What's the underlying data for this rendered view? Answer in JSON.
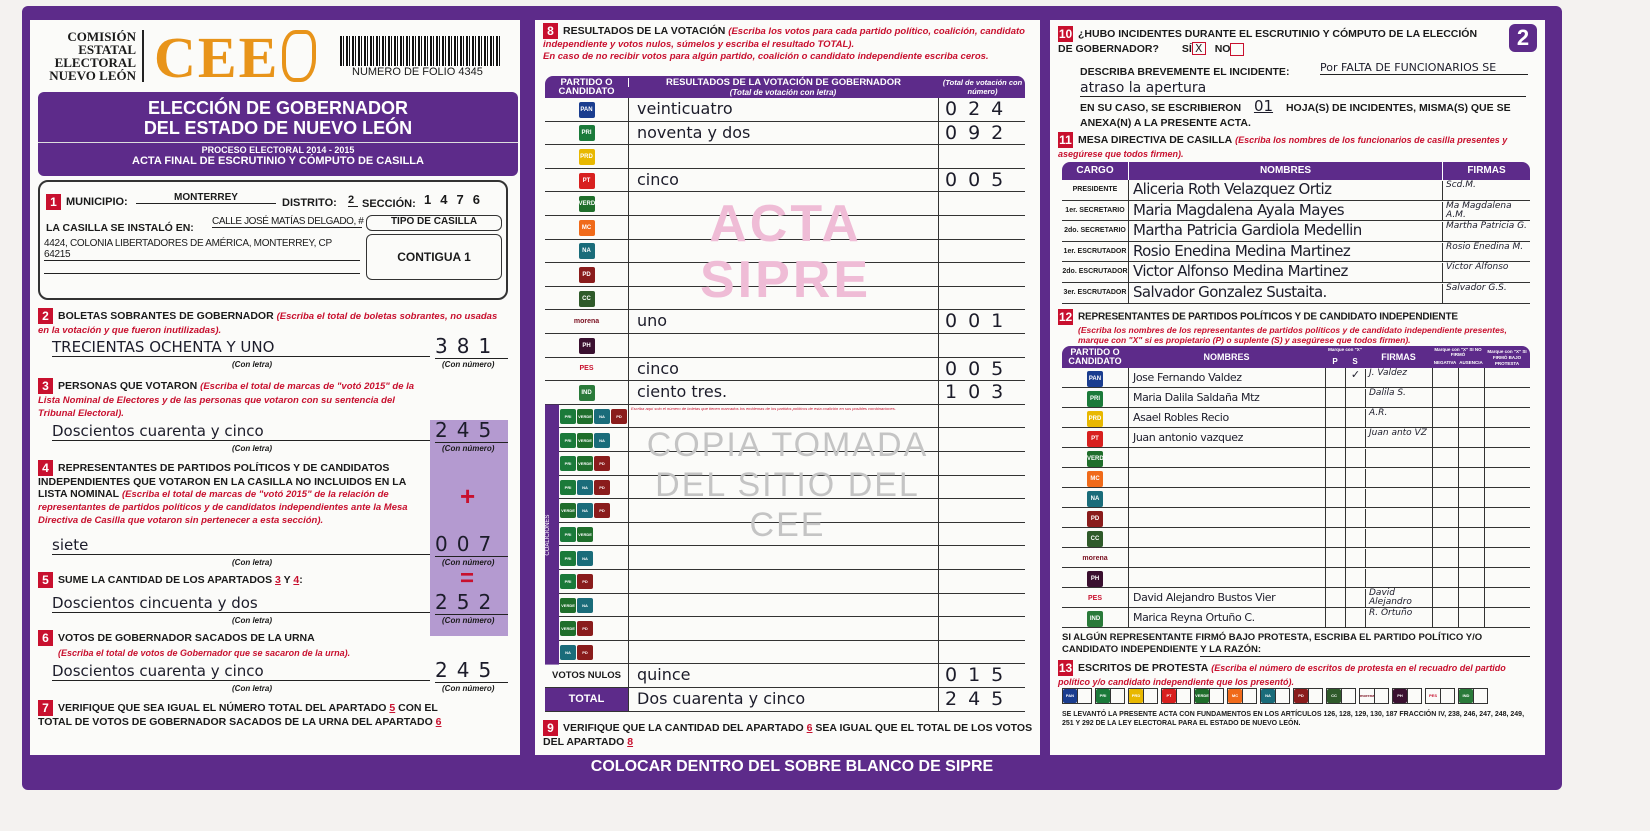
{
  "colors": {
    "frame": "#5d2b8a",
    "accent_red": "#c8102e",
    "logo_orange": "#e8941a",
    "watermark_pink": "#e9a8c8"
  },
  "header": {
    "org_lines": [
      "COMISIÓN",
      "ESTATAL",
      "ELECTORAL",
      "NUEVO LEÓN"
    ],
    "logo": "CEE",
    "folio": "NUMERO DE FOLIO 4345",
    "page_number": "2",
    "title1": "ELECCIÓN DE GOBERNADOR",
    "title2": "DEL ESTADO DE NUEVO LEÓN",
    "process": "PROCESO ELECTORAL 2014 - 2015",
    "act": "ACTA FINAL DE ESCRUTINIO Y CÓMPUTO DE CASILLA"
  },
  "s1": {
    "num": "1",
    "municipio_label": "MUNICIPIO:",
    "municipio": "MONTERREY",
    "distrito_label": "DISTRITO:",
    "distrito": "2",
    "seccion_label": "SECCIÓN:",
    "seccion": "1476",
    "instalo_label": "LA CASILLA SE INSTALÓ EN:",
    "direccion1": "CALLE JOSÉ MATÍAS DELGADO, #",
    "direccion2": "4424, COLONIA LIBERTADORES DE AMÉRICA, MONTERREY, CP 64215",
    "tipo_label": "TIPO DE CASILLA",
    "tipo": "CONTIGUA 1"
  },
  "labels": {
    "con_letra": "(Con letra)",
    "con_numero": "(Con número)",
    "plus": "+",
    "equals": "="
  },
  "s2": {
    "num": "2",
    "title": "BOLETAS SOBRANTES DE GOBERNADOR",
    "note": "(Escriba el total de boletas sobrantes, no usadas en la votación y que fueron inutilizadas).",
    "letra": "TRECIENTAS OCHENTA Y UNO",
    "numero": "381"
  },
  "s3": {
    "num": "3",
    "title": "PERSONAS QUE VOTARON",
    "note": "(Escriba el total de marcas de \"votó 2015\" de la Lista Nominal de Electores y de las personas que votaron con su sentencia del Tribunal Electoral).",
    "letra": "Doscientos cuarenta y cinco",
    "numero": "245"
  },
  "s4": {
    "num": "4",
    "title": "REPRESENTANTES DE PARTIDOS POLÍTICOS Y DE CANDIDATOS INDEPENDIENTES QUE VOTARON EN LA CASILLA NO INCLUIDOS EN LA LISTA NOMINAL",
    "note": "(Escriba el total de marcas de \"votó 2015\" de la relación de representantes de partidos políticos y de candidatos independientes ante la Mesa Directiva de Casilla que votaron sin pertenecer a esta sección).",
    "letra": "siete",
    "numero": "007"
  },
  "s5": {
    "num": "5",
    "title": "SUME LA CANTIDAD DE LOS APARTADOS",
    "a": "3",
    "y": "Y",
    "b": "4",
    "letra": "Doscientos cincuenta y dos",
    "numero": "252"
  },
  "s6": {
    "num": "6",
    "title": "VOTOS DE GOBERNADOR SACADOS DE LA URNA",
    "note": "(Escriba el total de votos de Gobernador que se sacaron de la urna).",
    "letra": "Doscientos cuarenta y cinco",
    "numero": "245"
  },
  "s7": {
    "num": "7",
    "t1": "VERIFIQUE QUE SEA IGUAL EL NÚMERO TOTAL DEL APARTADO",
    "a": "5",
    "t2": "CON EL TOTAL DE VOTOS DE GOBERNADOR SACADOS DE LA URNA DEL APARTADO",
    "b": "6"
  },
  "s8": {
    "num": "8",
    "title": "RESULTADOS DE LA VOTACIÓN",
    "note1": "(Escriba los votos para cada partido político, coalición, candidato independiente y votos nulos, súmelos y escriba el resultado TOTAL).",
    "note2": "En caso de no recibir votos para algún partido, coalición o candidato independiente escriba ceros.",
    "col_party": "PARTIDO O CANDIDATO",
    "col_letra": "RESULTADOS DE LA VOTACIÓN DE GOBERNADOR",
    "col_letra_sub": "(Total de votación con letra)",
    "col_num": "(Total de votación con número)",
    "rows": [
      {
        "party": "pan",
        "letra": "veinticuatro",
        "numero": "024"
      },
      {
        "party": "pri",
        "letra": "noventa y dos",
        "numero": "092"
      },
      {
        "party": "prd",
        "letra": "",
        "numero": ""
      },
      {
        "party": "pt",
        "letra": "cinco",
        "numero": "005"
      },
      {
        "party": "verde",
        "letra": "",
        "numero": ""
      },
      {
        "party": "movimiento-ciudadano",
        "letra": "",
        "numero": ""
      },
      {
        "party": "nueva-alianza",
        "letra": "",
        "numero": ""
      },
      {
        "party": "partido-democrata",
        "letra": "",
        "numero": ""
      },
      {
        "party": "cruzada-ciudadana",
        "letra": "",
        "numero": ""
      },
      {
        "party": "morena",
        "letra": "uno",
        "numero": "001"
      },
      {
        "party": "humanista",
        "letra": "",
        "numero": ""
      },
      {
        "party": "encuentro-social",
        "letra": "cinco",
        "numero": "005"
      },
      {
        "party": "candidato-independiente",
        "letra": "ciento tres.",
        "numero": "103"
      }
    ],
    "coalition_label": "COALICIONES",
    "coalition_note": "Escriba aquí solo el número de boletas que tienen marcados los emblemas de los partidos políticos de esta coalición en sus posibles combinaciones.",
    "coalitions": [
      [
        "pri",
        "verde",
        "nueva-alianza",
        "partido-democrata"
      ],
      [
        "pri",
        "verde",
        "nueva-alianza"
      ],
      [
        "pri",
        "verde",
        "partido-democrata"
      ],
      [
        "pri",
        "nueva-alianza",
        "partido-democrata"
      ],
      [
        "verde",
        "nueva-alianza",
        "partido-democrata"
      ],
      [
        "pri",
        "verde"
      ],
      [
        "pri",
        "nueva-alianza"
      ],
      [
        "pri",
        "partido-democrata"
      ],
      [
        "verde",
        "nueva-alianza"
      ],
      [
        "verde",
        "partido-democrata"
      ],
      [
        "nueva-alianza",
        "partido-democrata"
      ]
    ],
    "nulos_label": "VOTOS NULOS",
    "nulos_letra": "quince",
    "nulos_numero": "015",
    "total_label": "TOTAL",
    "total_letra": "Dos cuarenta y cinco",
    "total_numero": "245"
  },
  "s9": {
    "num": "9",
    "t1": "VERIFIQUE QUE LA CANTIDAD DEL APARTADO",
    "a": "6",
    "t2": "SEA IGUAL QUE EL TOTAL DE LOS VOTOS DEL APARTADO",
    "b": "8"
  },
  "s10": {
    "num": "10",
    "q": "¿HUBO INCIDENTES DURANTE EL ESCRUTINIO Y CÓMPUTO DE LA ELECCIÓN DE GOBERNADOR?",
    "si": "SÍ",
    "no": "NO",
    "si_mark": "X",
    "describe_label": "DESCRIBA BREVEMENTE EL INCIDENTE:",
    "incidente1": "Por FALTA DE FUNCIONARIOS SE",
    "incidente2": "atraso la apertura",
    "hojas_label1": "EN SU CASO, SE ESCRIBIERON",
    "hojas": "01",
    "hojas_sub": "(Con número)",
    "hojas_label2": "HOJA(S) DE INCIDENTES, MISMA(S) QUE SE ANEXA(N) A LA PRESENTE ACTA."
  },
  "s11": {
    "num": "11",
    "title": "MESA DIRECTIVA DE CASILLA",
    "note": "(Escriba los nombres de los funcionarios de casilla presentes y asegúrese que todos firmen).",
    "col_cargo": "CARGO",
    "col_nombres": "NOMBRES",
    "col_firmas": "FIRMAS",
    "rows": [
      {
        "cargo": "PRESIDENTE",
        "nombre": "Aliceria Roth Velazquez Ortiz",
        "firma": "Scd.M."
      },
      {
        "cargo": "1er. SECRETARIO",
        "nombre": "Maria Magdalena Ayala Mayes",
        "firma": "Ma Magdalena A.M."
      },
      {
        "cargo": "2do. SECRETARIO",
        "nombre": "Martha Patricia Gardiola Medellin",
        "firma": "Martha Patricia G."
      },
      {
        "cargo": "1er. ESCRUTADOR",
        "nombre": "Rosio Enedina Medina Martinez",
        "firma": "Rosio Enedina M."
      },
      {
        "cargo": "2do. ESCRUTADOR",
        "nombre": "Victor Alfonso Medina Martinez",
        "firma": "Victor Alfonso"
      },
      {
        "cargo": "3er. ESCRUTADOR",
        "nombre": "Salvador Gonzalez Sustaita.",
        "firma": "Salvador G.S."
      }
    ]
  },
  "s12": {
    "num": "12",
    "title": "REPRESENTANTES DE PARTIDOS POLÍTICOS Y DE CANDIDATO INDEPENDIENTE",
    "note": "(Escriba los nombres de los representantes de partidos políticos y de candidato independiente presentes, marque con \"X\" si es propietario (P) o suplente (S) y asegúrese que todos firmen).",
    "col_party": "PARTIDO O CANDIDATO",
    "col_nombres": "NOMBRES",
    "col_marque": "Marque con \"X\"",
    "col_p": "P",
    "col_s": "S",
    "col_firmas": "FIRMAS",
    "col_nofirmo": "Marque con \"X\" SI NO FIRMÓ",
    "col_negativa": "NEGATIVA",
    "col_ausencia": "AUSENCIA",
    "col_protesta": "Marque con \"X\" SI FIRMÓ BAJO PROTESTA",
    "rows": [
      {
        "party": "pan",
        "nombre": "Jose Fernando Valdez",
        "p": "",
        "s": "✓",
        "firma": "J. Valdez"
      },
      {
        "party": "pri",
        "nombre": "Maria Dalila Saldaña Mtz",
        "p": "",
        "s": "",
        "firma": "Dalila S."
      },
      {
        "party": "prd",
        "nombre": "Asael Robles Recio",
        "p": "",
        "s": "",
        "firma": "A.R."
      },
      {
        "party": "pt",
        "nombre": "Juan antonio vazquez",
        "p": "",
        "s": "",
        "firma": "Juan anto VZ"
      },
      {
        "party": "verde",
        "nombre": "",
        "p": "",
        "s": "",
        "firma": ""
      },
      {
        "party": "movimiento-ciudadano",
        "nombre": "",
        "p": "",
        "s": "",
        "firma": ""
      },
      {
        "party": "nueva-alianza",
        "nombre": "",
        "p": "",
        "s": "",
        "firma": ""
      },
      {
        "party": "partido-democrata",
        "nombre": "",
        "p": "",
        "s": "",
        "firma": ""
      },
      {
        "party": "cruzada-ciudadana",
        "nombre": "",
        "p": "",
        "s": "",
        "firma": ""
      },
      {
        "party": "morena",
        "nombre": "",
        "p": "",
        "s": "",
        "firma": ""
      },
      {
        "party": "humanista",
        "nombre": "",
        "p": "",
        "s": "",
        "firma": ""
      },
      {
        "party": "encuentro-social",
        "nombre": "David Alejandro Bustos Vier",
        "p": "",
        "s": "",
        "firma": "David Alejandro"
      },
      {
        "party": "candidato-independiente",
        "nombre": "Marica Reyna Ortuño C.",
        "p": "",
        "s": "",
        "firma": "R. Ortuño"
      }
    ],
    "protesta_text": "SI ALGÚN REPRESENTANTE FIRMÓ BAJO PROTESTA, ESCRIBA EL PARTIDO POLÍTICO Y/O CANDIDATO INDEPENDIENTE Y LA RAZÓN:"
  },
  "s13": {
    "num": "13",
    "title": "ESCRITOS DE PROTESTA",
    "note": "(Escriba el número de escritos de protesta en el recuadro del partido político y/o candidato independiente que los presentó).",
    "parties": [
      "pan",
      "pri",
      "prd",
      "pt",
      "verde",
      "movimiento-ciudadano",
      "nueva-alianza",
      "partido-democrata",
      "cruzada-ciudadana",
      "morena",
      "humanista",
      "encuentro-social",
      "candidato-independiente"
    ],
    "legal": "SE LEVANTÓ LA PRESENTE ACTA CON FUNDAMENTOS EN LOS ARTÍCULOS 126, 128, 129, 130, 187 FRACCIÓN IV, 238, 246, 247, 248, 249, 251 Y 292 DE LA LEY ELECTORAL PARA EL ESTADO DE NUEVO LEÓN."
  },
  "footer": "COLOCAR DENTRO DEL SOBRE BLANCO DE SIPRE",
  "watermarks": {
    "acta1": "ACTA",
    "acta2": "SIPRE",
    "copy": "COPIA TOMADA DEL SITIO DEL CEE"
  }
}
